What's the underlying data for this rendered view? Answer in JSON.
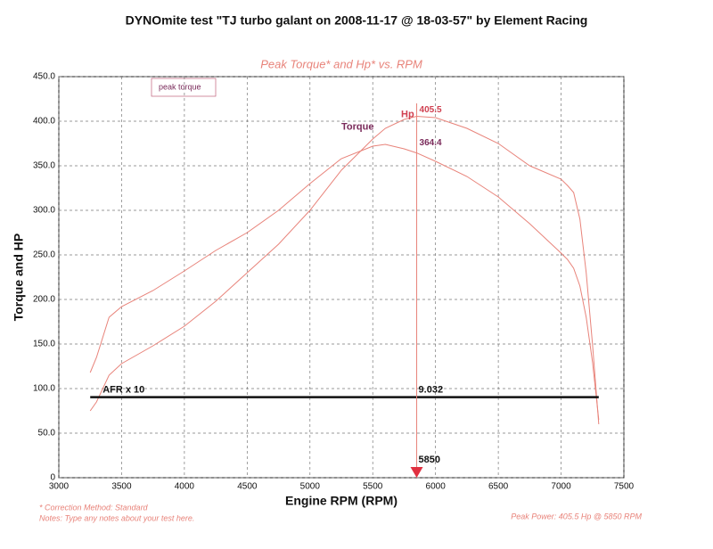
{
  "chart_data": {
    "type": "line",
    "title": "DYNOmite test \"TJ turbo galant  on 2008-11-17 @ 18-03-57\" by Element Racing",
    "subtitle": "Peak Torque* and Hp* vs. RPM",
    "x_label": "Engine RPM (RPM)",
    "y_label": "Torque and HP",
    "x": [
      3250,
      3300,
      3400,
      3500,
      3750,
      4000,
      4250,
      4500,
      4750,
      5000,
      5250,
      5500,
      5600,
      5750,
      5850,
      6000,
      6250,
      6500,
      6750,
      7000,
      7050,
      7100,
      7150,
      7200,
      7250,
      7300
    ],
    "series": [
      {
        "name": "Hp",
        "color": "#e8837a",
        "values": [
          75,
          85,
          115,
          128,
          148,
          170,
          198,
          230,
          262,
          300,
          345,
          380,
          392,
          402,
          405.5,
          404,
          392,
          375,
          350,
          335,
          328,
          320,
          290,
          230,
          150,
          60
        ]
      },
      {
        "name": "Torque",
        "color": "#e8837a",
        "values": [
          118,
          135,
          180,
          192,
          210,
          232,
          255,
          275,
          300,
          330,
          358,
          372,
          374,
          369,
          364.4,
          355,
          338,
          315,
          285,
          252,
          245,
          235,
          215,
          180,
          130,
          65
        ]
      }
    ],
    "afr": {
      "name": "AFR x 10",
      "color": "#111111",
      "x": [
        3250,
        7300
      ],
      "values": [
        90.32,
        90.32
      ],
      "reading": "9.032"
    },
    "cursor": 5850,
    "note_box": "peak torque",
    "footnotes": [
      "* Correction Method: Standard",
      "Notes: Type any notes about your test here."
    ],
    "peak_power": "Peak Power: 405.5 Hp @ 5850 RPM",
    "xlim": [
      3000,
      7500
    ],
    "ylim": [
      0,
      450
    ],
    "xticks": [
      3000,
      3500,
      4000,
      4500,
      5000,
      5500,
      6000,
      6500,
      7000,
      7500
    ],
    "yticks": [
      {
        "value": 0,
        "label": "0"
      },
      {
        "value": 50,
        "label": "50.0"
      },
      {
        "value": 100,
        "label": "100.0"
      },
      {
        "value": 150,
        "label": "150.0"
      },
      {
        "value": 200,
        "label": "200.0"
      },
      {
        "value": 250,
        "label": "250.0"
      },
      {
        "value": 300,
        "label": "300.0"
      },
      {
        "value": 350,
        "label": "350.0"
      },
      {
        "value": 400,
        "label": "400.0"
      },
      {
        "value": 450,
        "label": "450.0"
      }
    ],
    "grid": true
  }
}
